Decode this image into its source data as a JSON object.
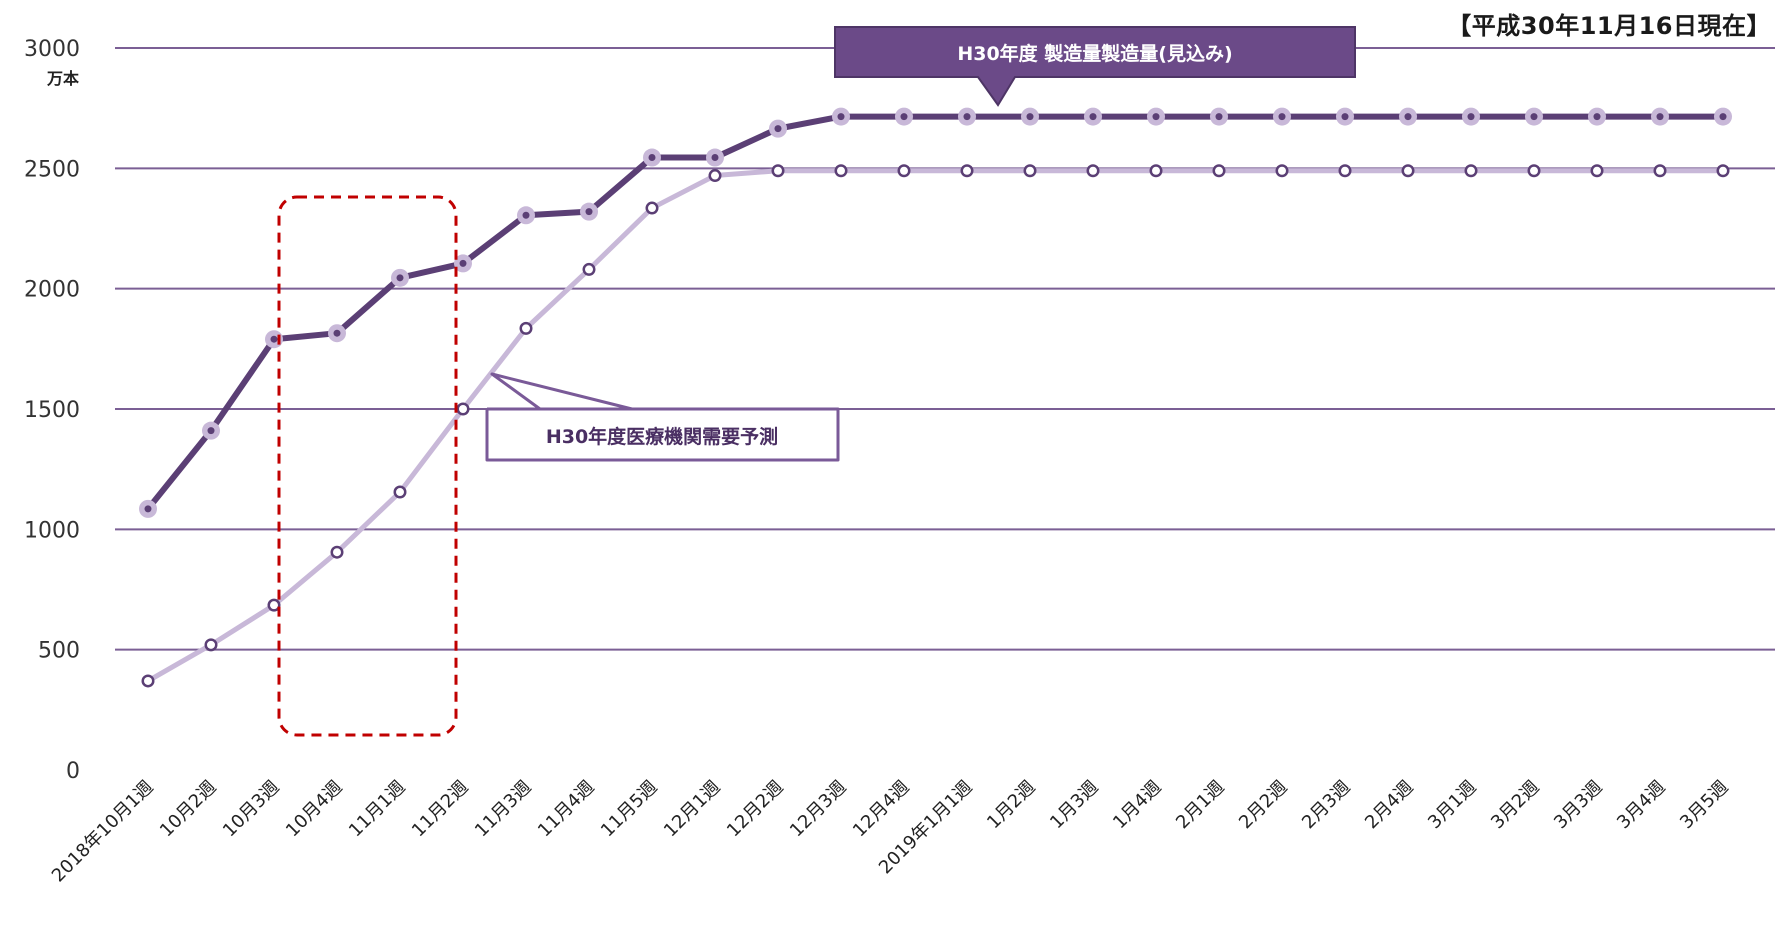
{
  "header": {
    "date_note": "【平成30年11月16日現在】"
  },
  "colors": {
    "production": "#5b3f75",
    "demand": "#c8b8d8",
    "grid": "#7b5f95",
    "highlight_box": "#c00000",
    "callout_fill": "#6b4a88",
    "callout_border": "#7a5a98"
  },
  "chart_data": {
    "type": "line",
    "y_unit": "万本",
    "ylim": [
      0,
      3000
    ],
    "y_ticks": [
      0,
      500,
      1000,
      1500,
      2000,
      2500,
      3000
    ],
    "grid": true,
    "categories": [
      "2018年10月1週",
      "10月2週",
      "10月3週",
      "10月4週",
      "11月1週",
      "11月2週",
      "11月3週",
      "11月4週",
      "11月5週",
      "12月1週",
      "12月2週",
      "12月3週",
      "12月4週",
      "2019年1月1週",
      "1月2週",
      "1月3週",
      "1月4週",
      "2月1週",
      "2月2週",
      "2月3週",
      "2月4週",
      "3月1週",
      "3月2週",
      "3月3週",
      "3月4週",
      "3月5週"
    ],
    "series": [
      {
        "name": "H30年度 製造量製造量(見込み)",
        "values": [
          1085,
          1410,
          1790,
          1815,
          2045,
          2105,
          2305,
          2320,
          2545,
          2545,
          2665,
          2715,
          2715,
          2715,
          2715,
          2715,
          2715,
          2715,
          2715,
          2715,
          2715,
          2715,
          2715,
          2715,
          2715,
          2715
        ]
      },
      {
        "name": "H30年度医療機関需要予測",
        "values": [
          370,
          520,
          685,
          905,
          1155,
          1500,
          1835,
          2080,
          2335,
          2470,
          2490,
          2490,
          2490,
          2490,
          2490,
          2490,
          2490,
          2490,
          2490,
          2490,
          2490,
          2490,
          2490,
          2490,
          2490,
          2490
        ]
      }
    ],
    "highlight_categories": [
      "10月3週",
      "10月4週",
      "11月1週",
      "11月2週"
    ]
  }
}
